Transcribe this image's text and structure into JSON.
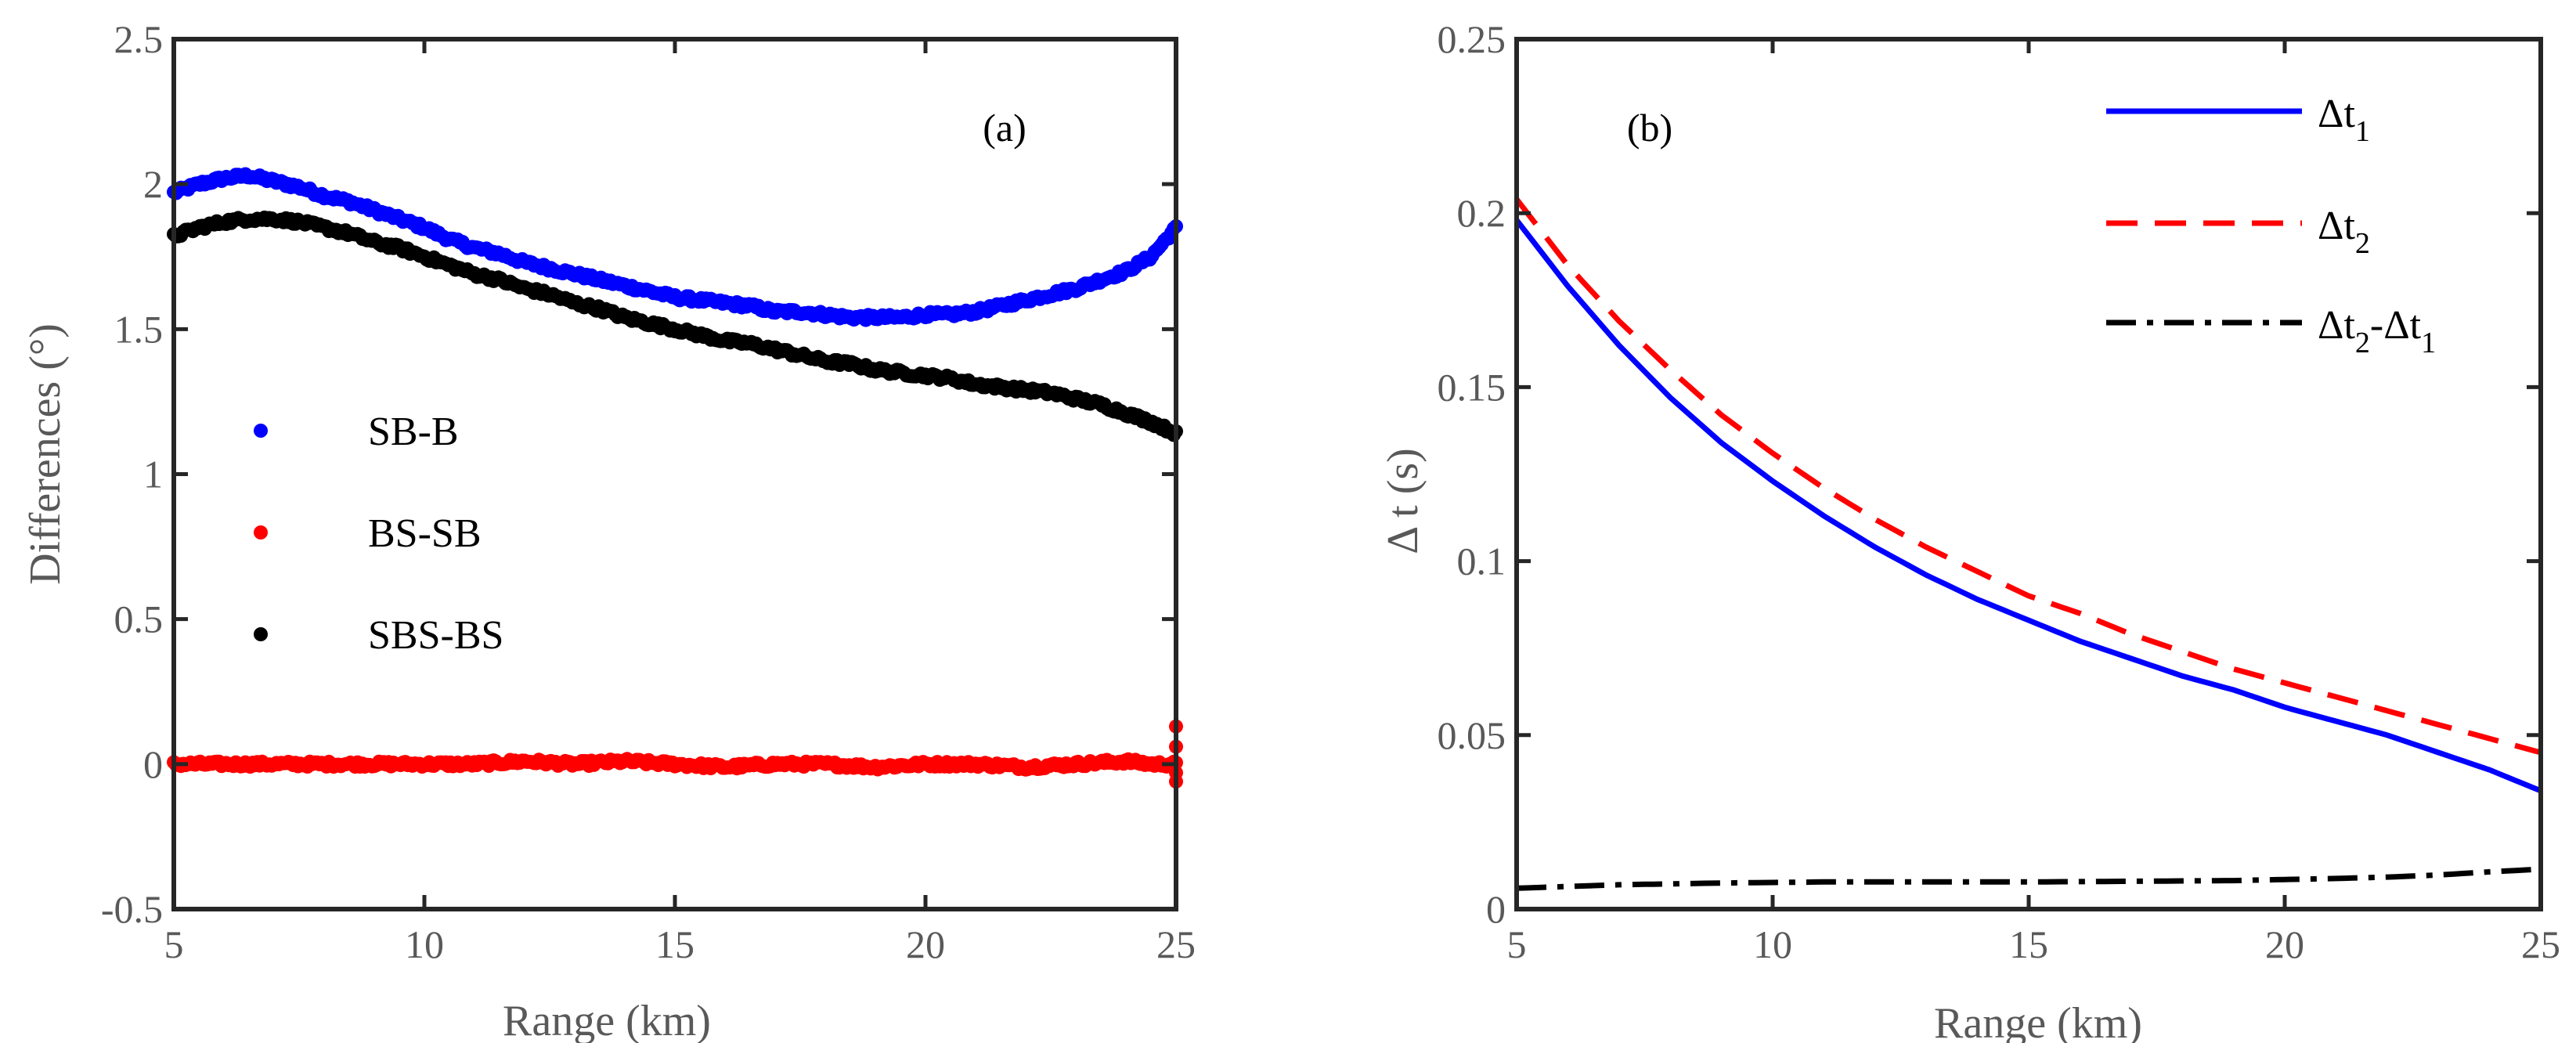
{
  "chart_data": [
    {
      "type": "scatter",
      "panel_label": "(a)",
      "xlabel": "Range (km)",
      "ylabel": "Differences (°)",
      "xlim": [
        5,
        25
      ],
      "ylim": [
        -0.5,
        2.5
      ],
      "xticks": [
        "5",
        "10",
        "15",
        "20",
        "25"
      ],
      "yticks": [
        "-0.5",
        "0",
        "0.5",
        "1",
        "1.5",
        "2",
        "2.5"
      ],
      "legend_position": "center-left",
      "series": [
        {
          "name": "SB-B",
          "color": "#0000ff",
          "x": [
            5,
            5.5,
            6,
            6.5,
            7,
            7.5,
            8,
            8.5,
            9,
            9.5,
            10,
            10.5,
            11,
            11.5,
            12,
            12.5,
            13,
            13.5,
            14,
            14.5,
            15,
            15.5,
            16,
            16.5,
            17,
            17.5,
            18,
            18.5,
            19,
            19.5,
            20,
            20.5,
            21,
            21.5,
            22,
            22.5,
            23,
            23.5,
            24,
            24.5,
            25
          ],
          "y": [
            1.97,
            2.0,
            2.02,
            2.03,
            2.01,
            1.99,
            1.96,
            1.94,
            1.91,
            1.88,
            1.85,
            1.81,
            1.78,
            1.76,
            1.73,
            1.71,
            1.69,
            1.67,
            1.65,
            1.63,
            1.61,
            1.6,
            1.59,
            1.58,
            1.56,
            1.56,
            1.55,
            1.54,
            1.54,
            1.54,
            1.55,
            1.55,
            1.56,
            1.58,
            1.6,
            1.62,
            1.64,
            1.67,
            1.7,
            1.75,
            1.85
          ]
        },
        {
          "name": "BS-SB",
          "color": "#ff0000",
          "x": [
            5,
            6,
            7,
            8,
            9,
            10,
            11,
            12,
            13,
            14,
            15,
            16,
            17,
            18,
            19,
            20,
            21,
            22,
            23,
            24,
            24.5,
            25
          ],
          "y": [
            0.0,
            0.0,
            0.0,
            0.0,
            0.0,
            0.0,
            0.0,
            0.01,
            0.0,
            0.01,
            0.0,
            -0.01,
            0.0,
            0.0,
            -0.01,
            0.0,
            0.0,
            -0.01,
            0.0,
            0.01,
            0.0,
            0.0
          ]
        },
        {
          "name": "SBS-BS",
          "color": "#000000",
          "x": [
            5,
            5.5,
            6,
            6.5,
            7,
            7.5,
            8,
            8.5,
            9,
            9.5,
            10,
            10.5,
            11,
            11.5,
            12,
            12.5,
            13,
            13.5,
            14,
            14.5,
            15,
            15.5,
            16,
            16.5,
            17,
            17.5,
            18,
            18.5,
            19,
            19.5,
            20,
            20.5,
            21,
            21.5,
            22,
            22.5,
            23,
            23.5,
            24,
            24.5,
            25
          ],
          "y": [
            1.82,
            1.85,
            1.87,
            1.88,
            1.88,
            1.87,
            1.85,
            1.83,
            1.8,
            1.78,
            1.75,
            1.72,
            1.69,
            1.67,
            1.64,
            1.62,
            1.59,
            1.57,
            1.54,
            1.52,
            1.5,
            1.48,
            1.46,
            1.45,
            1.43,
            1.41,
            1.39,
            1.38,
            1.36,
            1.35,
            1.34,
            1.33,
            1.31,
            1.3,
            1.29,
            1.28,
            1.26,
            1.24,
            1.21,
            1.18,
            1.14
          ]
        }
      ]
    },
    {
      "type": "line",
      "panel_label": "(b)",
      "xlabel": "Range (km)",
      "ylabel": "Δ t (s)",
      "xlim": [
        5,
        25
      ],
      "ylim": [
        0,
        0.25
      ],
      "xticks": [
        "5",
        "10",
        "15",
        "20",
        "25"
      ],
      "yticks": [
        "0",
        "0.05",
        "0.1",
        "0.15",
        "0.2",
        "0.25"
      ],
      "legend_position": "top-right",
      "series": [
        {
          "name": "Δt",
          "subscript": "1",
          "color": "#0000ff",
          "style": "solid",
          "x": [
            5,
            6,
            7,
            8,
            9,
            10,
            11,
            12,
            13,
            14,
            15,
            16,
            17,
            18,
            19,
            20,
            21,
            22,
            23,
            24,
            25
          ],
          "y": [
            0.198,
            0.179,
            0.162,
            0.147,
            0.134,
            0.123,
            0.113,
            0.104,
            0.096,
            0.089,
            0.083,
            0.077,
            0.072,
            0.067,
            0.063,
            0.058,
            0.054,
            0.05,
            0.045,
            0.04,
            0.034
          ]
        },
        {
          "name": "Δt",
          "subscript": "2",
          "color": "#ff0000",
          "style": "dashed",
          "x": [
            5,
            6,
            7,
            8,
            9,
            10,
            11,
            12,
            13,
            14,
            15,
            16,
            17,
            18,
            19,
            20,
            21,
            22,
            23,
            24,
            25
          ],
          "y": [
            0.204,
            0.185,
            0.169,
            0.155,
            0.142,
            0.131,
            0.121,
            0.112,
            0.104,
            0.097,
            0.09,
            0.085,
            0.079,
            0.074,
            0.069,
            0.065,
            0.061,
            0.057,
            0.053,
            0.049,
            0.045
          ]
        },
        {
          "name": "Δt",
          "subscript": "2",
          "name_suffix": "-Δt",
          "subscript2": "1",
          "color": "#000000",
          "style": "dash-dot",
          "x": [
            5,
            7,
            9,
            11,
            13,
            15,
            17,
            19,
            20,
            21,
            22,
            23,
            24,
            25
          ],
          "y": [
            0.006,
            0.007,
            0.0075,
            0.0078,
            0.0078,
            0.0078,
            0.008,
            0.0082,
            0.0085,
            0.0088,
            0.0092,
            0.0098,
            0.0107,
            0.0115
          ]
        }
      ]
    }
  ]
}
